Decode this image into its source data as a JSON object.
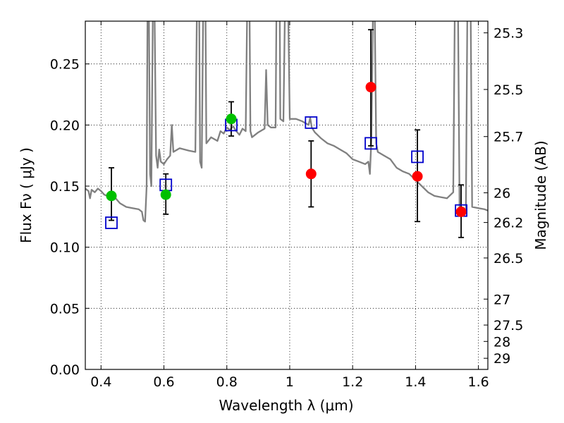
{
  "chart_data": {
    "type": "scatter",
    "xlabel": "Wavelength  λ (μm)",
    "ylabel": "Flux  Fν  ( μJy )",
    "ylabel_right": "Magnitude (AB)",
    "xlim": [
      0.35,
      1.63
    ],
    "ylim": [
      0,
      0.285
    ],
    "grid": true,
    "x_ticks": [
      0.4,
      0.6,
      0.8,
      1.0,
      1.2,
      1.4,
      1.6
    ],
    "x_tick_labels": [
      "0.4",
      "0.6",
      "0.8",
      "1",
      "1.2",
      "1.4",
      "1.6"
    ],
    "y_ticks": [
      0.0,
      0.05,
      0.1,
      0.15,
      0.2,
      0.25
    ],
    "y_tick_labels": [
      "0.00",
      "0.05",
      "0.10",
      "0.15",
      "0.20",
      "0.25"
    ],
    "right_ticks": [
      {
        "label": "25.3",
        "value": 25.3
      },
      {
        "label": "25.5",
        "value": 25.5
      },
      {
        "label": "25.7",
        "value": 25.7
      },
      {
        "label": "26",
        "value": 26.0
      },
      {
        "label": "26.2",
        "value": 26.2
      },
      {
        "label": "26.5",
        "value": 26.5
      },
      {
        "label": "27",
        "value": 27.0
      },
      {
        "label": "27.5",
        "value": 27.5
      },
      {
        "label": "28",
        "value": 28.0
      },
      {
        "label": "29",
        "value": 29.0
      }
    ],
    "colors": {
      "model": "#808080",
      "green": "#00c000",
      "red": "#ff0000",
      "square": "#0000cc",
      "errorbar": "#000000"
    },
    "model_spectrum": [
      [
        0.35,
        0.148
      ],
      [
        0.36,
        0.146
      ],
      [
        0.365,
        0.14
      ],
      [
        0.37,
        0.147
      ],
      [
        0.38,
        0.145
      ],
      [
        0.39,
        0.148
      ],
      [
        0.4,
        0.146
      ],
      [
        0.41,
        0.143
      ],
      [
        0.42,
        0.142
      ],
      [
        0.44,
        0.142
      ],
      [
        0.46,
        0.136
      ],
      [
        0.48,
        0.133
      ],
      [
        0.5,
        0.132
      ],
      [
        0.52,
        0.131
      ],
      [
        0.53,
        0.129
      ],
      [
        0.535,
        0.122
      ],
      [
        0.54,
        0.121
      ],
      [
        0.545,
        0.15
      ],
      [
        0.548,
        0.3
      ],
      [
        0.552,
        0.3
      ],
      [
        0.556,
        0.16
      ],
      [
        0.56,
        0.15
      ],
      [
        0.565,
        0.3
      ],
      [
        0.57,
        0.3
      ],
      [
        0.575,
        0.175
      ],
      [
        0.58,
        0.165
      ],
      [
        0.585,
        0.18
      ],
      [
        0.59,
        0.17
      ],
      [
        0.6,
        0.168
      ],
      [
        0.61,
        0.172
      ],
      [
        0.62,
        0.175
      ],
      [
        0.625,
        0.2
      ],
      [
        0.63,
        0.178
      ],
      [
        0.65,
        0.181
      ],
      [
        0.68,
        0.179
      ],
      [
        0.7,
        0.178
      ],
      [
        0.705,
        0.3
      ],
      [
        0.712,
        0.3
      ],
      [
        0.715,
        0.17
      ],
      [
        0.72,
        0.165
      ],
      [
        0.725,
        0.3
      ],
      [
        0.732,
        0.3
      ],
      [
        0.735,
        0.185
      ],
      [
        0.75,
        0.19
      ],
      [
        0.77,
        0.187
      ],
      [
        0.78,
        0.195
      ],
      [
        0.79,
        0.193
      ],
      [
        0.8,
        0.198
      ],
      [
        0.81,
        0.196
      ],
      [
        0.82,
        0.199
      ],
      [
        0.83,
        0.195
      ],
      [
        0.84,
        0.192
      ],
      [
        0.85,
        0.197
      ],
      [
        0.86,
        0.195
      ],
      [
        0.865,
        0.3
      ],
      [
        0.872,
        0.3
      ],
      [
        0.875,
        0.195
      ],
      [
        0.88,
        0.19
      ],
      [
        0.9,
        0.194
      ],
      [
        0.92,
        0.197
      ],
      [
        0.925,
        0.245
      ],
      [
        0.93,
        0.2
      ],
      [
        0.94,
        0.198
      ],
      [
        0.955,
        0.198
      ],
      [
        0.958,
        0.3
      ],
      [
        0.968,
        0.3
      ],
      [
        0.97,
        0.205
      ],
      [
        0.98,
        0.203
      ],
      [
        0.985,
        0.3
      ],
      [
        0.995,
        0.3
      ],
      [
        1.0,
        0.205
      ],
      [
        1.02,
        0.205
      ],
      [
        1.04,
        0.203
      ],
      [
        1.06,
        0.2
      ],
      [
        1.065,
        0.206
      ],
      [
        1.07,
        0.198
      ],
      [
        1.08,
        0.194
      ],
      [
        1.1,
        0.189
      ],
      [
        1.12,
        0.185
      ],
      [
        1.14,
        0.183
      ],
      [
        1.16,
        0.18
      ],
      [
        1.18,
        0.177
      ],
      [
        1.2,
        0.172
      ],
      [
        1.22,
        0.17
      ],
      [
        1.24,
        0.168
      ],
      [
        1.25,
        0.17
      ],
      [
        1.255,
        0.16
      ],
      [
        1.26,
        0.19
      ],
      [
        1.265,
        0.3
      ],
      [
        1.27,
        0.3
      ],
      [
        1.275,
        0.185
      ],
      [
        1.28,
        0.178
      ],
      [
        1.3,
        0.175
      ],
      [
        1.32,
        0.172
      ],
      [
        1.34,
        0.165
      ],
      [
        1.36,
        0.162
      ],
      [
        1.38,
        0.16
      ],
      [
        1.4,
        0.155
      ],
      [
        1.42,
        0.15
      ],
      [
        1.44,
        0.145
      ],
      [
        1.46,
        0.142
      ],
      [
        1.48,
        0.141
      ],
      [
        1.5,
        0.14
      ],
      [
        1.52,
        0.145
      ],
      [
        1.525,
        0.3
      ],
      [
        1.535,
        0.3
      ],
      [
        1.54,
        0.132
      ],
      [
        1.55,
        0.13
      ],
      [
        1.56,
        0.128
      ],
      [
        1.565,
        0.3
      ],
      [
        1.575,
        0.3
      ],
      [
        1.58,
        0.133
      ],
      [
        1.6,
        0.132
      ],
      [
        1.62,
        0.131
      ],
      [
        1.63,
        0.13
      ]
    ],
    "series": [
      {
        "marker": "circle",
        "color": "green",
        "points": [
          {
            "x": 0.433,
            "y": 0.142,
            "yerr_low": 0.122,
            "yerr_high": 0.165
          },
          {
            "x": 0.606,
            "y": 0.143,
            "yerr_low": 0.127,
            "yerr_high": 0.16
          },
          {
            "x": 0.814,
            "y": 0.205,
            "yerr_low": 0.191,
            "yerr_high": 0.219
          }
        ]
      },
      {
        "marker": "circle",
        "color": "red",
        "points": [
          {
            "x": 1.068,
            "y": 0.16,
            "yerr_low": 0.133,
            "yerr_high": 0.187
          },
          {
            "x": 1.258,
            "y": 0.231,
            "yerr_low": 0.183,
            "yerr_high": 0.278
          },
          {
            "x": 1.406,
            "y": 0.158,
            "yerr_low": 0.121,
            "yerr_high": 0.196
          },
          {
            "x": 1.545,
            "y": 0.129,
            "yerr_low": 0.108,
            "yerr_high": 0.151
          }
        ]
      },
      {
        "marker": "square",
        "color": "square",
        "points": [
          {
            "x": 0.433,
            "y": 0.12
          },
          {
            "x": 0.606,
            "y": 0.151
          },
          {
            "x": 0.814,
            "y": 0.2
          },
          {
            "x": 1.068,
            "y": 0.202
          },
          {
            "x": 1.258,
            "y": 0.185
          },
          {
            "x": 1.406,
            "y": 0.174
          },
          {
            "x": 1.545,
            "y": 0.13
          }
        ]
      }
    ]
  }
}
